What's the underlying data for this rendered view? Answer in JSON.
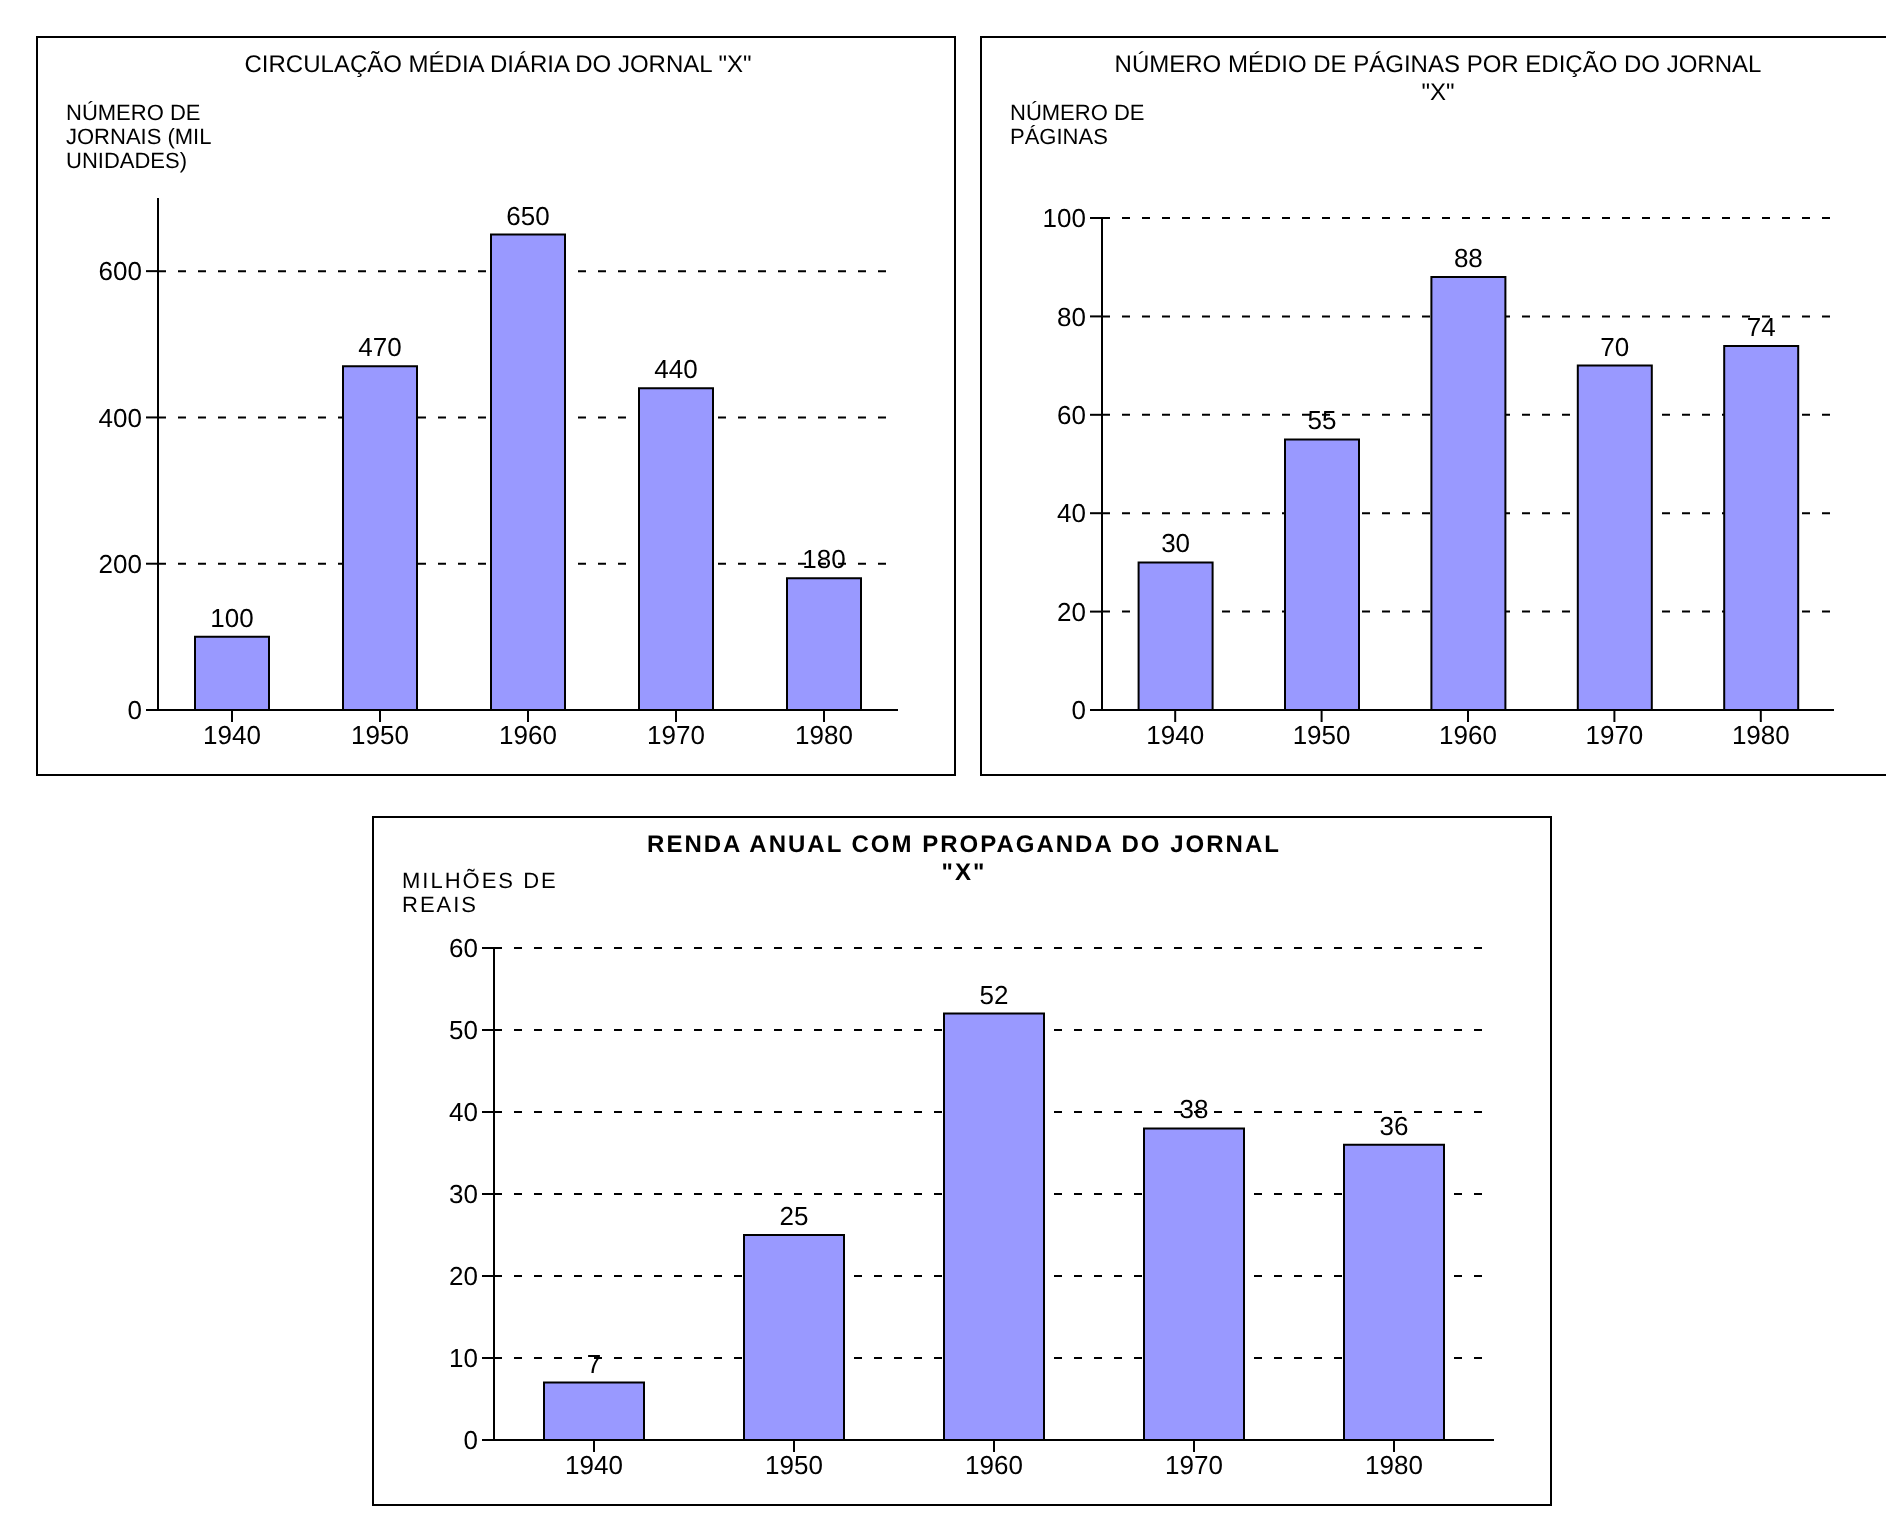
{
  "chart_data": [
    {
      "type": "bar",
      "title": "CIRCULAÇÃO MÉDIA DIÁRIA DO JORNAL \"X\"",
      "ylabel": "NÚMERO DE JORNAIS (MIL UNIDADES)",
      "categories": [
        "1940",
        "1950",
        "1960",
        "1970",
        "1980"
      ],
      "values": [
        100,
        470,
        650,
        440,
        180
      ],
      "color": "#9999ff",
      "ylim": [
        0,
        700
      ],
      "yticks": [
        0,
        200,
        400,
        600
      ],
      "grid": "y",
      "data_labels": true
    },
    {
      "type": "bar",
      "title": "NÚMERO MÉDIO DE PÁGINAS POR EDIÇÃO DO JORNAL \"X\"",
      "ylabel": "NÚMERO DE PÁGINAS",
      "categories": [
        "1940",
        "1950",
        "1960",
        "1970",
        "1980"
      ],
      "values": [
        30,
        55,
        88,
        70,
        74
      ],
      "color": "#9999ff",
      "ylim": [
        0,
        100
      ],
      "yticks": [
        0,
        20,
        40,
        60,
        80,
        100
      ],
      "grid": "y",
      "data_labels": true
    },
    {
      "type": "bar",
      "title": "RENDA ANUAL COM PROPAGANDA DO JORNAL \"X\"",
      "ylabel": "MILHÕES DE REAIS",
      "categories": [
        "1940",
        "1950",
        "1960",
        "1970",
        "1980"
      ],
      "values": [
        7,
        25,
        52,
        38,
        36
      ],
      "color": "#9999ff",
      "ylim": [
        0,
        60
      ],
      "yticks": [
        0,
        10,
        20,
        30,
        40,
        50,
        60
      ],
      "grid": "y",
      "data_labels": true
    }
  ]
}
